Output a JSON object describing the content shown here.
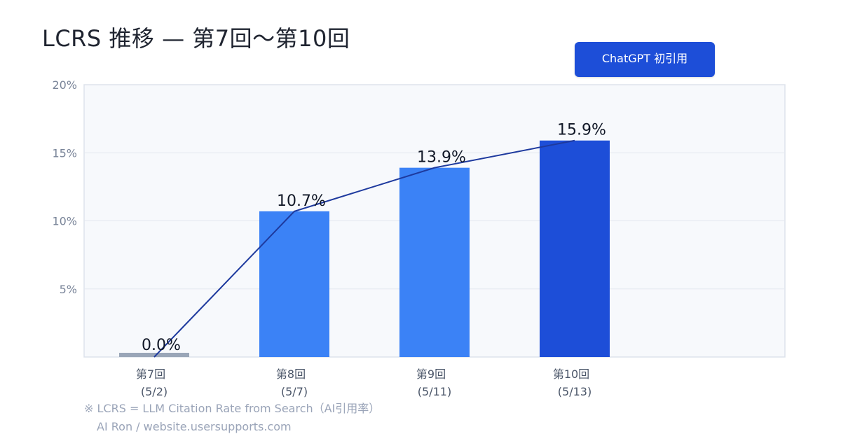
{
  "title": "LCRS 推移 — 第7回〜第10回",
  "badge": {
    "label": "ChatGPT 初引用",
    "color": "#1d4ed8"
  },
  "footnote": {
    "definition": "※ LCRS = LLM Citation Rate from Search（AI引用率）",
    "credit": "AI Ron / website.usersupports.com"
  },
  "chart_data": {
    "type": "bar",
    "categories": [
      {
        "label": "第7回",
        "date": "(5/2)"
      },
      {
        "label": "第8回",
        "date": "(5/7)"
      },
      {
        "label": "第9回",
        "date": "(5/11)"
      },
      {
        "label": "第10回",
        "date": "(5/13)"
      }
    ],
    "values": [
      0.0,
      10.7,
      13.9,
      15.9
    ],
    "value_labels": [
      "0.0%",
      "10.7%",
      "13.9%",
      "15.9%"
    ],
    "bar_colors": [
      "#9aa6b8",
      "#3b82f6",
      "#3b82f6",
      "#1d4ed8"
    ],
    "trend_line": {
      "values": [
        0.0,
        10.7,
        13.9,
        15.9
      ],
      "color": "#1e3a9e"
    },
    "ylim": [
      0,
      20
    ],
    "yticks": [
      5,
      10,
      15,
      20
    ],
    "ytick_labels": [
      "5%",
      "10%",
      "15%",
      "20%"
    ],
    "grid": true,
    "plot_background": "#f7f9fc"
  }
}
